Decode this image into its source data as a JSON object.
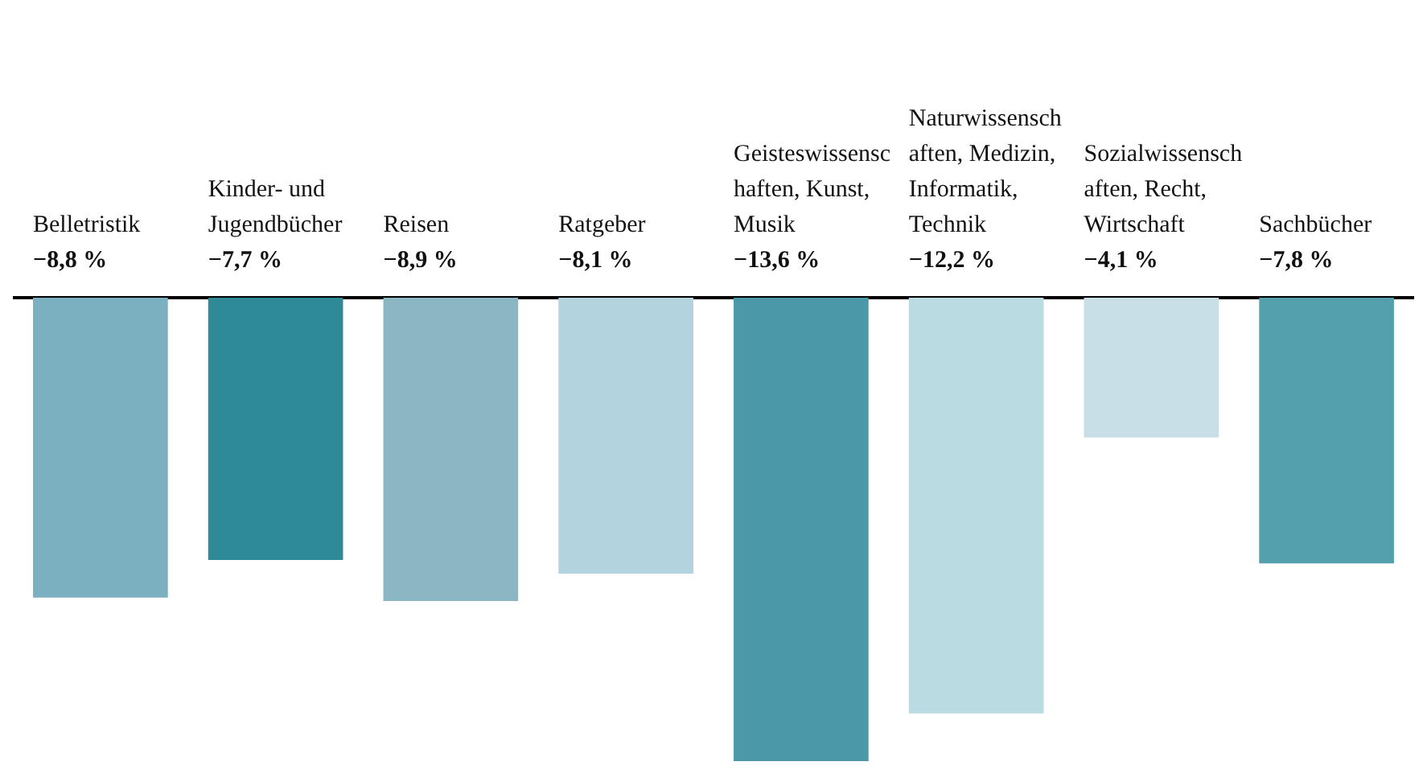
{
  "chart_data": {
    "type": "bar",
    "categories": [
      "Belletristik",
      "Kinder- und Jugendbücher",
      "Reisen",
      "Ratgeber",
      "Geisteswissenschaften, Kunst, Musik",
      "Naturwissenschaften, Medizin, Informatik, Technik",
      "Sozialwissenschaften, Recht, Wirtschaft",
      "Sachbücher"
    ],
    "values": [
      -8.8,
      -7.7,
      -8.9,
      -8.1,
      -13.6,
      -12.2,
      -4.1,
      -7.8
    ],
    "colors": [
      "#7ab0bf",
      "#2e8a96",
      "#8ab7c3",
      "#b3d4de",
      "#4b98a9",
      "#b9dbe1",
      "#c8dfe8",
      "#55a0ad"
    ],
    "value_labels": [
      "−8,8 %",
      "−7,7 %",
      "−8,9 %",
      "−8,1 %",
      "−13,6 %",
      "−12,2 %",
      "−4,1 %",
      "−7,8 %"
    ],
    "grid": false,
    "legend": false
  }
}
